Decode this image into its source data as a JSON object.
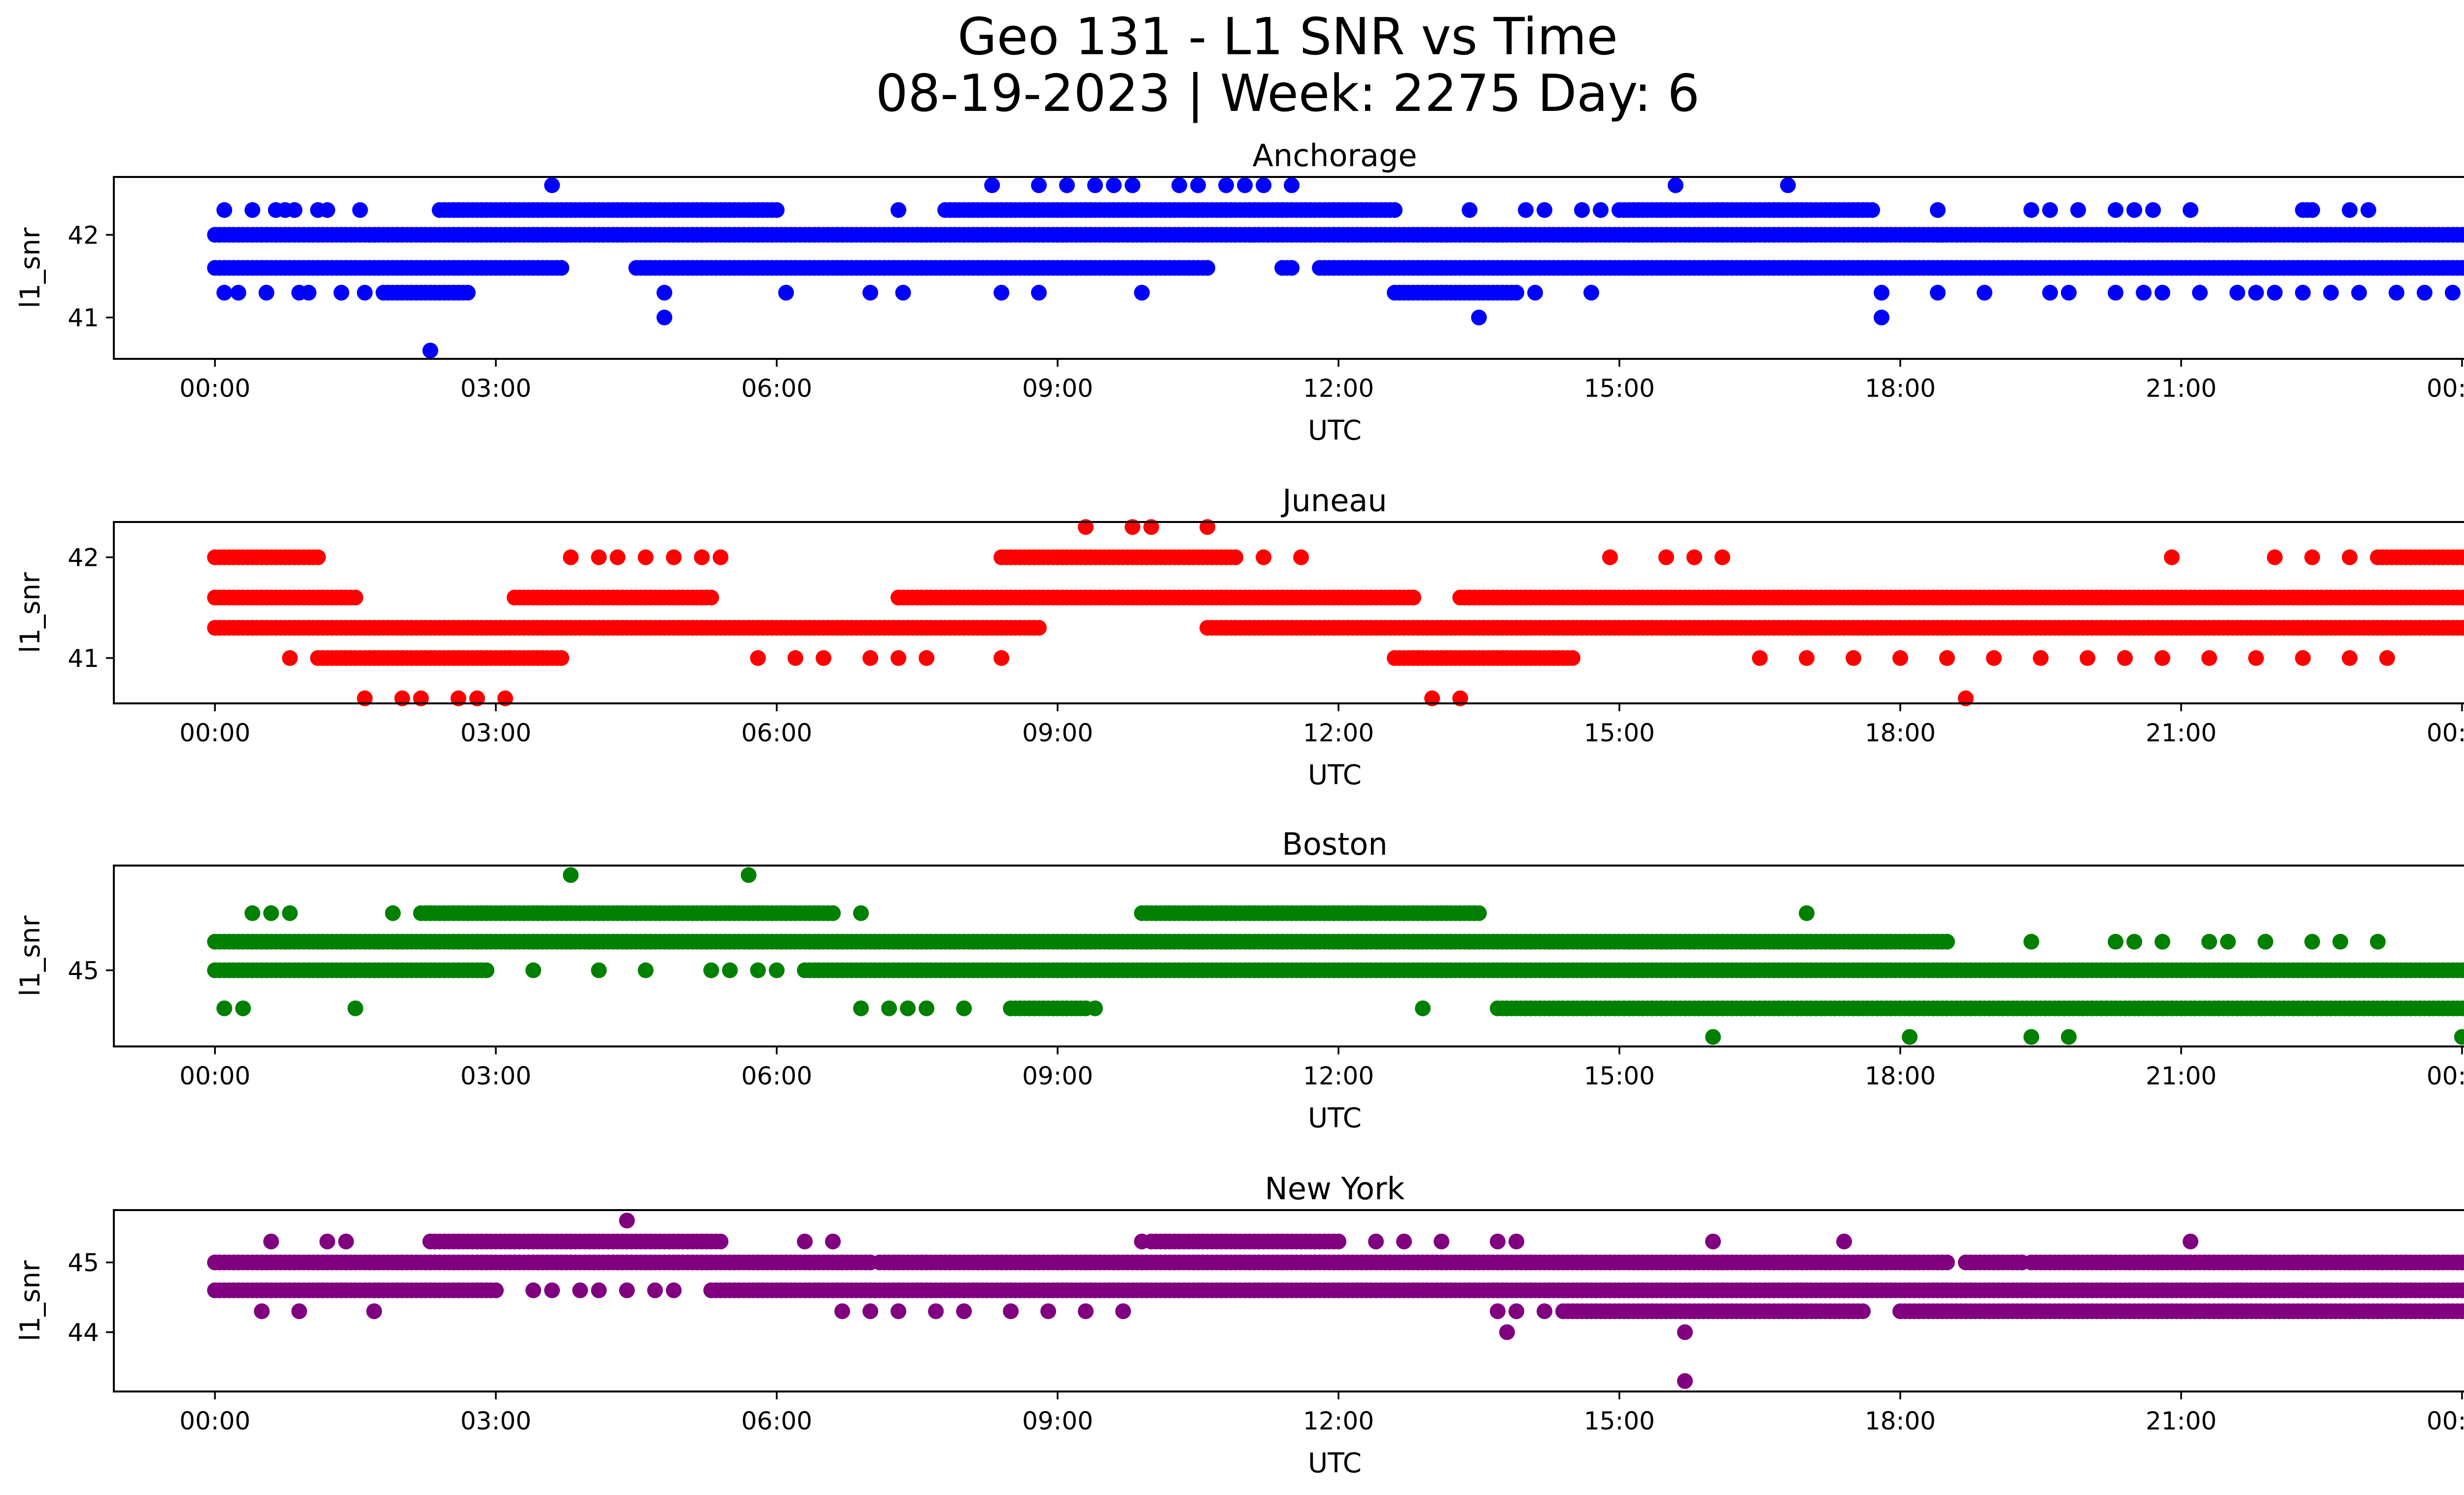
{
  "figure": {
    "title_line1": "Geo 131 - L1 SNR vs Time",
    "title_line2": "08-19-2023 | Week: 2275 Day: 6"
  },
  "chart_data": [
    {
      "type": "scatter",
      "title": "Anchorage",
      "xlabel": "UTC",
      "ylabel": "l1_snr",
      "color": "#0000ff",
      "xlim_hours": [
        -1.08,
        25.0
      ],
      "xtick_labels": [
        "00:00",
        "03:00",
        "06:00",
        "09:00",
        "12:00",
        "15:00",
        "18:00",
        "21:00",
        "00:00"
      ],
      "ylim": [
        40.5,
        42.7
      ],
      "yticks": [
        41,
        42
      ],
      "levels": [
        {
          "y": 42.0,
          "segments": [
            [
              0.0,
              24.0
            ]
          ]
        },
        {
          "y": 41.6,
          "segments": [
            [
              0.0,
              3.7
            ],
            [
              4.5,
              10.6
            ],
            [
              11.4,
              11.5
            ],
            [
              11.8,
              23.0
            ],
            [
              23.05,
              24.0
            ]
          ]
        },
        {
          "y": 42.3,
          "segments": [
            [
              2.4,
              6.0
            ],
            [
              7.8,
              12.6
            ],
            [
              15.0,
              17.7
            ],
            [
              22.3,
              22.4
            ]
          ]
        },
        {
          "y": 41.3,
          "segments": [
            [
              1.8,
              2.7
            ],
            [
              12.6,
              13.9
            ]
          ]
        }
      ],
      "points": [
        {
          "x": 0.1,
          "y": 42.3
        },
        {
          "x": 0.4,
          "y": 42.3
        },
        {
          "x": 0.65,
          "y": 42.3
        },
        {
          "x": 0.75,
          "y": 42.3
        },
        {
          "x": 0.85,
          "y": 42.3
        },
        {
          "x": 1.1,
          "y": 42.3
        },
        {
          "x": 1.2,
          "y": 42.3
        },
        {
          "x": 1.55,
          "y": 42.3
        },
        {
          "x": 7.3,
          "y": 42.3
        },
        {
          "x": 13.4,
          "y": 42.3
        },
        {
          "x": 14.0,
          "y": 42.3
        },
        {
          "x": 14.2,
          "y": 42.3
        },
        {
          "x": 14.6,
          "y": 42.3
        },
        {
          "x": 14.8,
          "y": 42.3
        },
        {
          "x": 18.4,
          "y": 42.3
        },
        {
          "x": 19.4,
          "y": 42.3
        },
        {
          "x": 19.6,
          "y": 42.3
        },
        {
          "x": 19.9,
          "y": 42.3
        },
        {
          "x": 20.3,
          "y": 42.3
        },
        {
          "x": 20.5,
          "y": 42.3
        },
        {
          "x": 20.7,
          "y": 42.3
        },
        {
          "x": 21.1,
          "y": 42.3
        },
        {
          "x": 22.8,
          "y": 42.3
        },
        {
          "x": 23.0,
          "y": 42.3
        },
        {
          "x": 3.6,
          "y": 42.6
        },
        {
          "x": 8.3,
          "y": 42.6
        },
        {
          "x": 8.8,
          "y": 42.6
        },
        {
          "x": 9.1,
          "y": 42.6
        },
        {
          "x": 9.4,
          "y": 42.6
        },
        {
          "x": 9.6,
          "y": 42.6
        },
        {
          "x": 9.8,
          "y": 42.6
        },
        {
          "x": 10.3,
          "y": 42.6
        },
        {
          "x": 10.5,
          "y": 42.6
        },
        {
          "x": 10.8,
          "y": 42.6
        },
        {
          "x": 11.0,
          "y": 42.6
        },
        {
          "x": 11.2,
          "y": 42.6
        },
        {
          "x": 11.5,
          "y": 42.6
        },
        {
          "x": 15.6,
          "y": 42.6
        },
        {
          "x": 16.8,
          "y": 42.6
        },
        {
          "x": 0.1,
          "y": 41.3
        },
        {
          "x": 0.25,
          "y": 41.3
        },
        {
          "x": 0.55,
          "y": 41.3
        },
        {
          "x": 0.9,
          "y": 41.3
        },
        {
          "x": 1.0,
          "y": 41.3
        },
        {
          "x": 1.35,
          "y": 41.3
        },
        {
          "x": 1.6,
          "y": 41.3
        },
        {
          "x": 4.8,
          "y": 41.3
        },
        {
          "x": 6.1,
          "y": 41.3
        },
        {
          "x": 7.0,
          "y": 41.3
        },
        {
          "x": 7.35,
          "y": 41.3
        },
        {
          "x": 8.4,
          "y": 41.3
        },
        {
          "x": 8.8,
          "y": 41.3
        },
        {
          "x": 9.9,
          "y": 41.3
        },
        {
          "x": 14.1,
          "y": 41.3
        },
        {
          "x": 14.7,
          "y": 41.3
        },
        {
          "x": 17.8,
          "y": 41.3
        },
        {
          "x": 18.4,
          "y": 41.3
        },
        {
          "x": 18.9,
          "y": 41.3
        },
        {
          "x": 19.6,
          "y": 41.3
        },
        {
          "x": 19.8,
          "y": 41.3
        },
        {
          "x": 20.3,
          "y": 41.3
        },
        {
          "x": 20.6,
          "y": 41.3
        },
        {
          "x": 20.8,
          "y": 41.3
        },
        {
          "x": 21.2,
          "y": 41.3
        },
        {
          "x": 21.6,
          "y": 41.3
        },
        {
          "x": 21.8,
          "y": 41.3
        },
        {
          "x": 22.0,
          "y": 41.3
        },
        {
          "x": 22.3,
          "y": 41.3
        },
        {
          "x": 22.6,
          "y": 41.3
        },
        {
          "x": 22.9,
          "y": 41.3
        },
        {
          "x": 23.3,
          "y": 41.3
        },
        {
          "x": 23.6,
          "y": 41.3
        },
        {
          "x": 23.9,
          "y": 41.3
        },
        {
          "x": 4.8,
          "y": 41.0
        },
        {
          "x": 13.5,
          "y": 41.0
        },
        {
          "x": 17.8,
          "y": 41.0
        },
        {
          "x": 2.3,
          "y": 40.6
        }
      ]
    },
    {
      "type": "scatter",
      "title": "Juneau",
      "xlabel": "UTC",
      "ylabel": "l1_snr",
      "color": "#ff0000",
      "xlim_hours": [
        -1.08,
        25.0
      ],
      "xtick_labels": [
        "00:00",
        "03:00",
        "06:00",
        "09:00",
        "12:00",
        "15:00",
        "18:00",
        "21:00",
        "00:00"
      ],
      "ylim": [
        40.55,
        42.35
      ],
      "yticks": [
        41,
        42
      ],
      "levels": [
        {
          "y": 41.3,
          "segments": [
            [
              0.0,
              8.8
            ],
            [
              10.6,
              24.0
            ]
          ]
        },
        {
          "y": 41.6,
          "segments": [
            [
              0.0,
              1.5
            ],
            [
              3.2,
              5.3
            ],
            [
              7.3,
              12.8
            ],
            [
              13.3,
              24.0
            ]
          ]
        },
        {
          "y": 42.0,
          "segments": [
            [
              0.0,
              1.1
            ],
            [
              8.4,
              10.9
            ],
            [
              23.1,
              24.0
            ]
          ]
        },
        {
          "y": 41.0,
          "segments": [
            [
              1.1,
              3.7
            ],
            [
              12.6,
              14.5
            ]
          ]
        }
      ],
      "points": [
        {
          "x": 3.8,
          "y": 42.0
        },
        {
          "x": 4.1,
          "y": 42.0
        },
        {
          "x": 4.3,
          "y": 42.0
        },
        {
          "x": 4.6,
          "y": 42.0
        },
        {
          "x": 4.9,
          "y": 42.0
        },
        {
          "x": 5.2,
          "y": 42.0
        },
        {
          "x": 5.4,
          "y": 42.0
        },
        {
          "x": 11.2,
          "y": 42.0
        },
        {
          "x": 11.6,
          "y": 42.0
        },
        {
          "x": 14.9,
          "y": 42.0
        },
        {
          "x": 15.5,
          "y": 42.0
        },
        {
          "x": 15.8,
          "y": 42.0
        },
        {
          "x": 16.1,
          "y": 42.0
        },
        {
          "x": 20.9,
          "y": 42.0
        },
        {
          "x": 22.0,
          "y": 42.0
        },
        {
          "x": 22.4,
          "y": 42.0
        },
        {
          "x": 22.8,
          "y": 42.0
        },
        {
          "x": 9.3,
          "y": 42.3
        },
        {
          "x": 9.8,
          "y": 42.3
        },
        {
          "x": 10.0,
          "y": 42.3
        },
        {
          "x": 10.6,
          "y": 42.3
        },
        {
          "x": 0.8,
          "y": 41.0
        },
        {
          "x": 5.8,
          "y": 41.0
        },
        {
          "x": 6.2,
          "y": 41.0
        },
        {
          "x": 6.5,
          "y": 41.0
        },
        {
          "x": 7.0,
          "y": 41.0
        },
        {
          "x": 7.3,
          "y": 41.0
        },
        {
          "x": 7.6,
          "y": 41.0
        },
        {
          "x": 8.4,
          "y": 41.0
        },
        {
          "x": 16.5,
          "y": 41.0
        },
        {
          "x": 17.0,
          "y": 41.0
        },
        {
          "x": 17.5,
          "y": 41.0
        },
        {
          "x": 18.0,
          "y": 41.0
        },
        {
          "x": 18.5,
          "y": 41.0
        },
        {
          "x": 19.0,
          "y": 41.0
        },
        {
          "x": 19.5,
          "y": 41.0
        },
        {
          "x": 20.0,
          "y": 41.0
        },
        {
          "x": 20.4,
          "y": 41.0
        },
        {
          "x": 20.8,
          "y": 41.0
        },
        {
          "x": 21.3,
          "y": 41.0
        },
        {
          "x": 21.8,
          "y": 41.0
        },
        {
          "x": 22.3,
          "y": 41.0
        },
        {
          "x": 22.8,
          "y": 41.0
        },
        {
          "x": 23.2,
          "y": 41.0
        },
        {
          "x": 1.6,
          "y": 40.6
        },
        {
          "x": 2.0,
          "y": 40.6
        },
        {
          "x": 2.2,
          "y": 40.6
        },
        {
          "x": 2.6,
          "y": 40.6
        },
        {
          "x": 2.8,
          "y": 40.6
        },
        {
          "x": 3.1,
          "y": 40.6
        },
        {
          "x": 13.0,
          "y": 40.6
        },
        {
          "x": 13.3,
          "y": 40.6
        },
        {
          "x": 18.7,
          "y": 40.6
        }
      ]
    },
    {
      "type": "scatter",
      "title": "Boston",
      "xlabel": "UTC",
      "ylabel": "l1_snr",
      "color": "#008000",
      "xlim_hours": [
        -1.08,
        25.0
      ],
      "xtick_labels": [
        "00:00",
        "03:00",
        "06:00",
        "09:00",
        "12:00",
        "15:00",
        "18:00",
        "21:00",
        "00:00"
      ],
      "ylim": [
        44.2,
        46.1
      ],
      "yticks": [
        45
      ],
      "levels": [
        {
          "y": 45.3,
          "segments": [
            [
              0.0,
              18.5
            ]
          ]
        },
        {
          "y": 45.0,
          "segments": [
            [
              0.0,
              2.9
            ],
            [
              6.3,
              24.0
            ]
          ]
        },
        {
          "y": 45.6,
          "segments": [
            [
              2.2,
              6.6
            ],
            [
              9.9,
              13.5
            ]
          ]
        },
        {
          "y": 44.6,
          "segments": [
            [
              8.5,
              9.3
            ],
            [
              13.7,
              24.0
            ]
          ]
        }
      ],
      "points": [
        {
          "x": 3.4,
          "y": 45.0
        },
        {
          "x": 4.1,
          "y": 45.0
        },
        {
          "x": 4.6,
          "y": 45.0
        },
        {
          "x": 5.3,
          "y": 45.0
        },
        {
          "x": 5.5,
          "y": 45.0
        },
        {
          "x": 5.8,
          "y": 45.0
        },
        {
          "x": 6.0,
          "y": 45.0
        },
        {
          "x": 0.4,
          "y": 45.6
        },
        {
          "x": 0.6,
          "y": 45.6
        },
        {
          "x": 0.8,
          "y": 45.6
        },
        {
          "x": 1.9,
          "y": 45.6
        },
        {
          "x": 6.9,
          "y": 45.6
        },
        {
          "x": 17.0,
          "y": 45.6
        },
        {
          "x": 3.8,
          "y": 46.0
        },
        {
          "x": 5.7,
          "y": 46.0
        },
        {
          "x": 0.1,
          "y": 44.6
        },
        {
          "x": 0.3,
          "y": 44.6
        },
        {
          "x": 1.5,
          "y": 44.6
        },
        {
          "x": 6.9,
          "y": 44.6
        },
        {
          "x": 7.2,
          "y": 44.6
        },
        {
          "x": 7.4,
          "y": 44.6
        },
        {
          "x": 7.6,
          "y": 44.6
        },
        {
          "x": 8.0,
          "y": 44.6
        },
        {
          "x": 9.4,
          "y": 44.6
        },
        {
          "x": 12.9,
          "y": 44.6
        },
        {
          "x": 17.2,
          "y": 45.3
        },
        {
          "x": 19.4,
          "y": 45.3
        },
        {
          "x": 20.3,
          "y": 45.3
        },
        {
          "x": 20.5,
          "y": 45.3
        },
        {
          "x": 20.8,
          "y": 45.3
        },
        {
          "x": 21.3,
          "y": 45.3
        },
        {
          "x": 21.5,
          "y": 45.3
        },
        {
          "x": 21.9,
          "y": 45.3
        },
        {
          "x": 22.4,
          "y": 45.3
        },
        {
          "x": 22.7,
          "y": 45.3
        },
        {
          "x": 23.1,
          "y": 45.3
        },
        {
          "x": 16.0,
          "y": 44.3
        },
        {
          "x": 18.1,
          "y": 44.3
        },
        {
          "x": 19.4,
          "y": 44.3
        },
        {
          "x": 19.8,
          "y": 44.3
        },
        {
          "x": 24.0,
          "y": 44.3
        }
      ]
    },
    {
      "type": "scatter",
      "title": "New York",
      "xlabel": "UTC",
      "ylabel": "l1_snr",
      "color": "#800080",
      "xlim_hours": [
        -1.08,
        25.0
      ],
      "xtick_labels": [
        "00:00",
        "03:00",
        "06:00",
        "09:00",
        "12:00",
        "15:00",
        "18:00",
        "21:00",
        "00:00"
      ],
      "ylim": [
        43.15,
        45.75
      ],
      "yticks": [
        44,
        45
      ],
      "levels": [
        {
          "y": 45.0,
          "segments": [
            [
              0.0,
              7.0
            ],
            [
              7.1,
              18.5
            ],
            [
              18.7,
              19.3
            ],
            [
              19.4,
              24.0
            ]
          ]
        },
        {
          "y": 44.6,
          "segments": [
            [
              0.0,
              3.0
            ],
            [
              5.3,
              24.0
            ]
          ]
        },
        {
          "y": 45.3,
          "segments": [
            [
              2.3,
              5.4
            ],
            [
              10.0,
              12.0
            ]
          ]
        },
        {
          "y": 44.3,
          "segments": [
            [
              14.4,
              17.6
            ],
            [
              18.0,
              24.0
            ]
          ]
        }
      ],
      "points": [
        {
          "x": 3.4,
          "y": 44.6
        },
        {
          "x": 3.6,
          "y": 44.6
        },
        {
          "x": 3.9,
          "y": 44.6
        },
        {
          "x": 4.1,
          "y": 44.6
        },
        {
          "x": 4.4,
          "y": 44.6
        },
        {
          "x": 4.7,
          "y": 44.6
        },
        {
          "x": 4.9,
          "y": 44.6
        },
        {
          "x": 0.6,
          "y": 45.3
        },
        {
          "x": 1.2,
          "y": 45.3
        },
        {
          "x": 1.4,
          "y": 45.3
        },
        {
          "x": 6.3,
          "y": 45.3
        },
        {
          "x": 6.6,
          "y": 45.3
        },
        {
          "x": 9.9,
          "y": 45.3
        },
        {
          "x": 12.4,
          "y": 45.3
        },
        {
          "x": 12.7,
          "y": 45.3
        },
        {
          "x": 13.1,
          "y": 45.3
        },
        {
          "x": 13.7,
          "y": 45.3
        },
        {
          "x": 13.9,
          "y": 45.3
        },
        {
          "x": 16.0,
          "y": 45.3
        },
        {
          "x": 17.4,
          "y": 45.3
        },
        {
          "x": 21.1,
          "y": 45.3
        },
        {
          "x": 4.4,
          "y": 45.6
        },
        {
          "x": 0.5,
          "y": 44.3
        },
        {
          "x": 0.9,
          "y": 44.3
        },
        {
          "x": 1.7,
          "y": 44.3
        },
        {
          "x": 6.7,
          "y": 44.3
        },
        {
          "x": 7.0,
          "y": 44.3
        },
        {
          "x": 7.3,
          "y": 44.3
        },
        {
          "x": 7.7,
          "y": 44.3
        },
        {
          "x": 8.0,
          "y": 44.3
        },
        {
          "x": 8.5,
          "y": 44.3
        },
        {
          "x": 8.9,
          "y": 44.3
        },
        {
          "x": 9.3,
          "y": 44.3
        },
        {
          "x": 9.7,
          "y": 44.3
        },
        {
          "x": 13.7,
          "y": 44.3
        },
        {
          "x": 13.9,
          "y": 44.3
        },
        {
          "x": 14.2,
          "y": 44.3
        },
        {
          "x": 13.8,
          "y": 44.0
        },
        {
          "x": 15.7,
          "y": 44.0
        },
        {
          "x": 15.7,
          "y": 43.3
        }
      ]
    }
  ]
}
